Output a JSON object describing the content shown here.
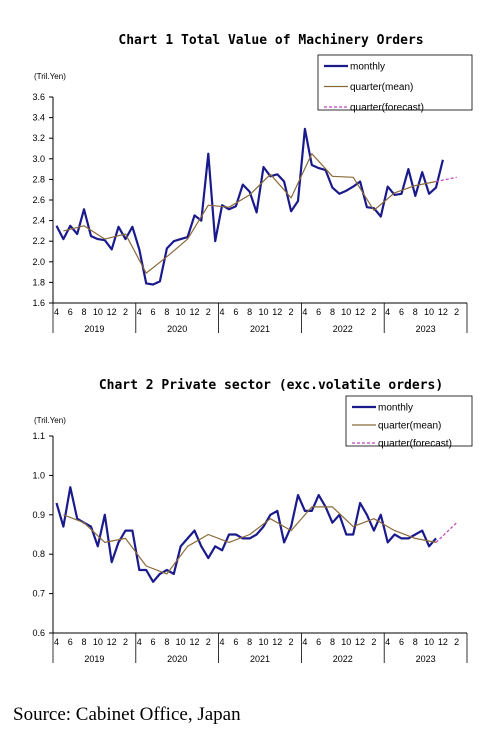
{
  "source": "Source: Cabinet Office, Japan",
  "colors": {
    "monthly": "#1a1a8c",
    "quarter": "#8b6a3a",
    "forecast": "#c040c0"
  },
  "chart_data": [
    {
      "type": "line",
      "title": "Chart 1 Total Value of Machinery Orders",
      "unit_label": "(Tril.Yen)",
      "ylim": [
        1.6,
        3.6
      ],
      "yticks": [
        "1.6",
        "1.8",
        "2.0",
        "2.2",
        "2.4",
        "2.6",
        "2.8",
        "3.0",
        "3.2",
        "3.4",
        "3.6"
      ],
      "month_labels": [
        "4",
        "",
        "6",
        "",
        "8",
        "",
        "10",
        "",
        "12",
        "",
        "2",
        ""
      ],
      "years": [
        "2019",
        "2020",
        "2021",
        "2022",
        "2023"
      ],
      "legend": [
        "monthly",
        "quarter(mean)",
        "quarter(forecast)"
      ],
      "series": [
        {
          "name": "monthly",
          "values": [
            2.35,
            2.22,
            2.35,
            2.27,
            2.51,
            2.25,
            2.22,
            2.21,
            2.12,
            2.34,
            2.22,
            2.34,
            2.12,
            1.79,
            1.78,
            1.81,
            2.13,
            2.2,
            2.22,
            2.24,
            2.45,
            2.4,
            3.05,
            2.2,
            2.55,
            2.51,
            2.54,
            2.75,
            2.68,
            2.48,
            2.92,
            2.83,
            2.85,
            2.78,
            2.49,
            2.59,
            3.29,
            2.94,
            2.91,
            2.89,
            2.72,
            2.66,
            2.69,
            2.73,
            2.78,
            2.53,
            2.52,
            2.44,
            2.73,
            2.65,
            2.66,
            2.9,
            2.64,
            2.87,
            2.66,
            2.72,
            2.99
          ]
        },
        {
          "name": "quarter(mean)",
          "x": [
            1,
            4,
            7,
            10,
            13,
            16,
            19,
            22,
            25,
            28,
            31,
            34,
            37,
            40,
            43,
            46,
            49,
            52,
            55
          ],
          "values": [
            2.3,
            2.35,
            2.22,
            2.27,
            1.89,
            2.05,
            2.22,
            2.55,
            2.53,
            2.65,
            2.85,
            2.62,
            3.05,
            2.83,
            2.82,
            2.5,
            2.67,
            2.74,
            2.78
          ]
        },
        {
          "name": "quarter(forecast)",
          "x": [
            55,
            58
          ],
          "values": [
            2.78,
            2.82
          ]
        }
      ]
    },
    {
      "type": "line",
      "title": "Chart 2 Private sector (exc.volatile orders)",
      "unit_label": "(Tril.Yen)",
      "ylim": [
        0.6,
        1.1
      ],
      "yticks": [
        "0.6",
        "0.7",
        "0.8",
        "0.9",
        "1.0",
        "1.1"
      ],
      "month_labels": [
        "4",
        "",
        "6",
        "",
        "8",
        "",
        "10",
        "",
        "12",
        "",
        "2",
        ""
      ],
      "years": [
        "2019",
        "2020",
        "2021",
        "2022",
        "2023"
      ],
      "legend": [
        "monthly",
        "quarter(mean)",
        "quarter(forecast)"
      ],
      "series": [
        {
          "name": "monthly",
          "values": [
            0.93,
            0.87,
            0.97,
            0.89,
            0.88,
            0.87,
            0.82,
            0.9,
            0.78,
            0.83,
            0.86,
            0.86,
            0.76,
            0.76,
            0.73,
            0.75,
            0.76,
            0.75,
            0.82,
            0.84,
            0.86,
            0.82,
            0.79,
            0.82,
            0.81,
            0.85,
            0.85,
            0.84,
            0.84,
            0.85,
            0.87,
            0.9,
            0.91,
            0.83,
            0.87,
            0.95,
            0.91,
            0.91,
            0.95,
            0.92,
            0.88,
            0.9,
            0.85,
            0.85,
            0.93,
            0.9,
            0.86,
            0.9,
            0.83,
            0.85,
            0.84,
            0.84,
            0.85,
            0.86,
            0.82,
            0.84
          ]
        },
        {
          "name": "quarter(mean)",
          "x": [
            1,
            4,
            7,
            10,
            13,
            16,
            19,
            22,
            25,
            28,
            31,
            34,
            37,
            40,
            43,
            46,
            49,
            52,
            55
          ],
          "values": [
            0.9,
            0.88,
            0.83,
            0.84,
            0.77,
            0.75,
            0.82,
            0.85,
            0.83,
            0.85,
            0.89,
            0.86,
            0.92,
            0.92,
            0.87,
            0.89,
            0.86,
            0.84,
            0.83
          ]
        },
        {
          "name": "quarter(forecast)",
          "x": [
            55,
            58
          ],
          "values": [
            0.83,
            0.88
          ]
        }
      ]
    }
  ]
}
